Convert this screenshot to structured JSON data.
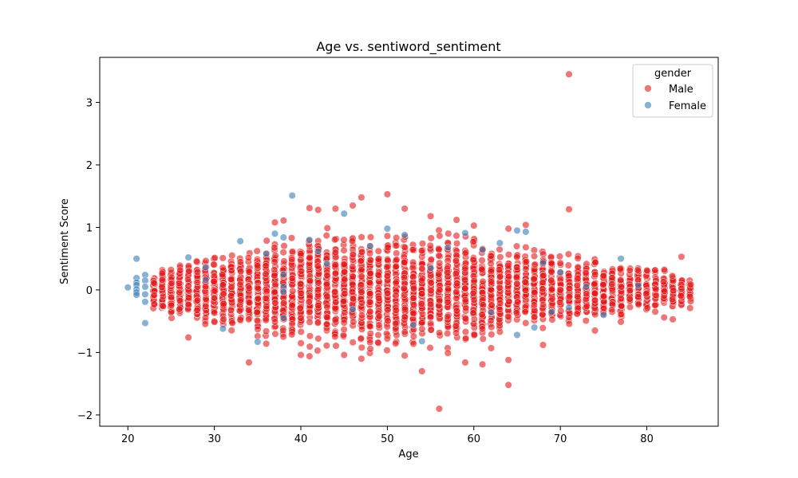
{
  "chart_data": {
    "type": "scatter",
    "title": "Age vs. sentiword_sentiment",
    "xlabel": "Age",
    "ylabel": "Sentiment Score",
    "xlim": [
      16.75,
      88.25
    ],
    "ylim": [
      -2.18,
      3.72
    ],
    "xticks": [
      20,
      30,
      40,
      50,
      60,
      70,
      80
    ],
    "yticks": [
      -2,
      -1,
      0,
      1,
      2,
      3
    ],
    "grid": false,
    "legend": {
      "title": "gender",
      "placement": "top-right"
    },
    "series": [
      {
        "name": "Male",
        "color": "#e41a1c",
        "band": [
          [
            23,
            0.33
          ],
          [
            24,
            0.4
          ],
          [
            25,
            0.45
          ],
          [
            26,
            0.48
          ],
          [
            27,
            0.5
          ],
          [
            28,
            0.53
          ],
          [
            29,
            0.56
          ],
          [
            30,
            0.6
          ],
          [
            31,
            0.63
          ],
          [
            32,
            0.66
          ],
          [
            33,
            0.7
          ],
          [
            34,
            0.74
          ],
          [
            35,
            0.77
          ],
          [
            36,
            0.8
          ],
          [
            37,
            0.85
          ],
          [
            38,
            0.88
          ],
          [
            39,
            0.9
          ],
          [
            40,
            0.93
          ],
          [
            41,
            0.95
          ],
          [
            42,
            0.97
          ],
          [
            43,
            0.99
          ],
          [
            44,
            1.0
          ],
          [
            45,
            1.0
          ],
          [
            46,
            1.02
          ],
          [
            47,
            1.03
          ],
          [
            48,
            1.03
          ],
          [
            49,
            1.02
          ],
          [
            50,
            1.02
          ],
          [
            51,
            1.01
          ],
          [
            52,
            1.0
          ],
          [
            53,
            1.0
          ],
          [
            54,
            0.99
          ],
          [
            55,
            0.97
          ],
          [
            56,
            0.96
          ],
          [
            57,
            0.94
          ],
          [
            58,
            0.92
          ],
          [
            59,
            0.9
          ],
          [
            60,
            0.88
          ],
          [
            61,
            0.86
          ],
          [
            62,
            0.83
          ],
          [
            63,
            0.8
          ],
          [
            64,
            0.77
          ],
          [
            65,
            0.74
          ],
          [
            66,
            0.71
          ],
          [
            67,
            0.68
          ],
          [
            68,
            0.65
          ],
          [
            69,
            0.62
          ],
          [
            70,
            0.6
          ],
          [
            71,
            0.58
          ],
          [
            72,
            0.56
          ],
          [
            73,
            0.54
          ],
          [
            74,
            0.52
          ],
          [
            75,
            0.5
          ],
          [
            76,
            0.48
          ],
          [
            77,
            0.46
          ],
          [
            78,
            0.44
          ],
          [
            79,
            0.42
          ],
          [
            80,
            0.4
          ],
          [
            81,
            0.37
          ],
          [
            82,
            0.34
          ],
          [
            83,
            0.31
          ],
          [
            84,
            0.27
          ],
          [
            85,
            0.23
          ]
        ],
        "outliers": [
          [
            71,
            3.45
          ],
          [
            71,
            1.29
          ],
          [
            50,
            1.53
          ],
          [
            47,
            1.48
          ],
          [
            46,
            1.35
          ],
          [
            41,
            1.31
          ],
          [
            42,
            1.28
          ],
          [
            44,
            1.3
          ],
          [
            52,
            1.3
          ],
          [
            55,
            1.18
          ],
          [
            58,
            1.12
          ],
          [
            60,
            1.03
          ],
          [
            64,
            0.98
          ],
          [
            66,
            1.04
          ],
          [
            38,
            1.11
          ],
          [
            37,
            1.08
          ],
          [
            34,
            -1.16
          ],
          [
            40,
            -1.04
          ],
          [
            41,
            -1.06
          ],
          [
            47,
            -1.1
          ],
          [
            54,
            -1.3
          ],
          [
            56,
            -1.9
          ],
          [
            59,
            -1.16
          ],
          [
            61,
            -1.19
          ],
          [
            64,
            -1.12
          ],
          [
            64,
            -1.52
          ],
          [
            27,
            -0.76
          ],
          [
            35,
            -0.74
          ],
          [
            74,
            -0.65
          ],
          [
            77,
            -0.51
          ],
          [
            82,
            -0.44
          ],
          [
            83,
            -0.47
          ],
          [
            85,
            -0.29
          ],
          [
            84,
            0.53
          ],
          [
            45,
            -1.04
          ],
          [
            52,
            -1.05
          ],
          [
            57,
            -1.01
          ],
          [
            62,
            -0.93
          ],
          [
            68,
            -0.88
          ],
          [
            36,
            -0.86
          ]
        ]
      },
      {
        "name": "Female",
        "color": "#377eb8",
        "points": [
          [
            20,
            0.04
          ],
          [
            21,
            0.5
          ],
          [
            21,
            0.19
          ],
          [
            21,
            0.12
          ],
          [
            21,
            0.08
          ],
          [
            21,
            0.01
          ],
          [
            21,
            -0.04
          ],
          [
            21,
            -0.08
          ],
          [
            22,
            0.24
          ],
          [
            22,
            0.15
          ],
          [
            22,
            0.05
          ],
          [
            22,
            -0.07
          ],
          [
            22,
            -0.19
          ],
          [
            22,
            -0.53
          ],
          [
            27,
            0.52
          ],
          [
            29,
            0.36
          ],
          [
            29,
            0.16
          ],
          [
            31,
            -0.62
          ],
          [
            33,
            0.78
          ],
          [
            35,
            -0.83
          ],
          [
            36,
            0.58
          ],
          [
            37,
            0.9
          ],
          [
            38,
            0.84
          ],
          [
            38,
            0.25
          ],
          [
            38,
            0.05
          ],
          [
            38,
            -0.03
          ],
          [
            38,
            -0.45
          ],
          [
            39,
            1.51
          ],
          [
            41,
            0.8
          ],
          [
            42,
            0.62
          ],
          [
            43,
            0.42
          ],
          [
            45,
            1.22
          ],
          [
            46,
            -0.31
          ],
          [
            48,
            0.7
          ],
          [
            50,
            0.98
          ],
          [
            52,
            0.88
          ],
          [
            53,
            -0.56
          ],
          [
            54,
            -0.82
          ],
          [
            55,
            0.35
          ],
          [
            57,
            0.68
          ],
          [
            59,
            0.91
          ],
          [
            61,
            0.64
          ],
          [
            62,
            -0.36
          ],
          [
            63,
            0.75
          ],
          [
            65,
            0.95
          ],
          [
            65,
            -0.72
          ],
          [
            66,
            0.93
          ],
          [
            67,
            -0.6
          ],
          [
            68,
            0.43
          ],
          [
            69,
            -0.35
          ],
          [
            70,
            0.28
          ],
          [
            71,
            -0.28
          ],
          [
            73,
            0.05
          ],
          [
            75,
            -0.4
          ],
          [
            77,
            0.5
          ],
          [
            79,
            0.07
          ]
        ]
      }
    ]
  }
}
